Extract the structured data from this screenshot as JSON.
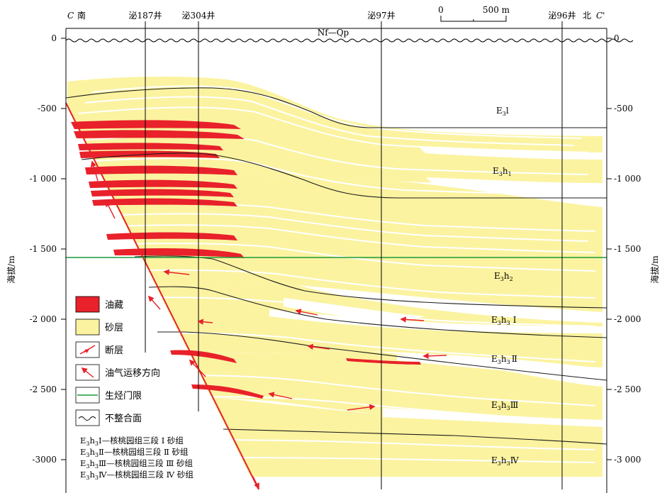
{
  "profile": {
    "section_left": "C",
    "section_right": "C'",
    "dir_left": "南",
    "dir_right": "北",
    "wells": [
      "泌187井",
      "泌304井",
      "泌97井",
      "泌96井"
    ],
    "unconformity_label": "Nf—Qp",
    "scale": {
      "zero": "0",
      "end": "500 m"
    },
    "y_label": "海拔/m",
    "y_ticks": [
      "0",
      "-500",
      "-1 000",
      "-1 500",
      "-2 000",
      "-2 500",
      "-3 000"
    ],
    "y_ticks_left": [
      "0",
      "-500",
      "-1 000",
      "-1 500",
      "-2 000",
      "-2 500",
      "-3000"
    ],
    "y_ticks_right": [
      "0",
      "-500",
      "-1 000",
      "-1 500",
      "-2 000",
      "-2 500",
      "-3 000"
    ],
    "units": {
      "e3l": {
        "main": "E",
        "sub": "3",
        "tail": "l"
      },
      "e3h1": {
        "main": "E",
        "sub": "3",
        "tail": "h",
        "sub2": "1"
      },
      "e3h2": {
        "main": "E",
        "sub": "3",
        "tail": "h",
        "sub2": "2"
      },
      "e3h3_1": {
        "main": "E",
        "sub": "3",
        "tail": "h",
        "sub2": "3",
        "roman": "Ⅰ"
      },
      "e3h3_2": {
        "main": "E",
        "sub": "3",
        "tail": "h",
        "sub2": "3",
        "roman": "Ⅱ"
      },
      "e3h3_3": {
        "main": "E",
        "sub": "3",
        "tail": "h",
        "sub2": "3",
        "roman": "Ⅲ"
      },
      "e3h3_4": {
        "main": "E",
        "sub": "3",
        "tail": "h",
        "sub2": "3",
        "roman": "Ⅳ"
      }
    },
    "legend": [
      "油藏",
      "砂层",
      "断层",
      "油气运移方向",
      "生烃门限",
      "不整合面"
    ],
    "abbreviations": [
      {
        "code": "Ⅰ",
        "text": "—核桃园组三段 Ⅰ 砂组"
      },
      {
        "code": "Ⅱ",
        "text": "—核桃园组三段 Ⅱ 砂组"
      },
      {
        "code": "Ⅲ",
        "text": "—核桃园组三段 Ⅲ 砂组"
      },
      {
        "code": "Ⅳ",
        "text": "—核桃园组三段 Ⅳ 砂组"
      }
    ],
    "colors": {
      "oil": "#e8212a",
      "sand": "#fbf3a0",
      "fault": "#e8212a",
      "threshold": "#1a9a3a",
      "boundary": "#1b1b1b"
    }
  }
}
